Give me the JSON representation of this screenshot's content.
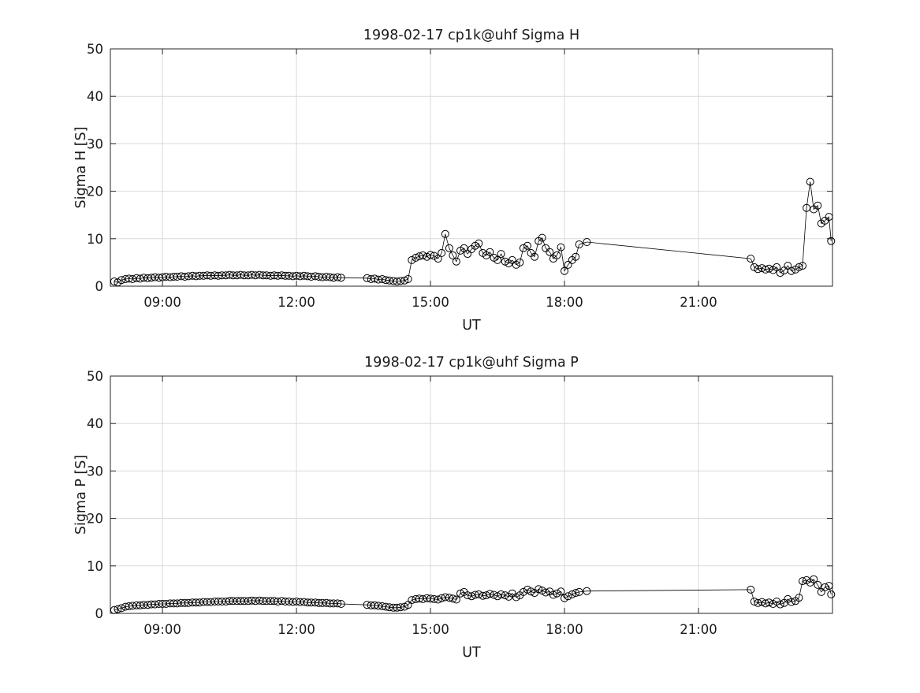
{
  "figure": {
    "background": "#ffffff",
    "axis_color": "#262626",
    "grid_color": "#d9d9d9",
    "data_color": "#000000"
  },
  "chart_data": [
    {
      "type": "line",
      "title": "1998-02-17  cp1k@uhf Sigma H",
      "xlabel": "UT",
      "ylabel": "Sigma H [S]",
      "xlim": [
        7.8333,
        24.0
      ],
      "ylim": [
        0,
        50
      ],
      "grid": true,
      "legend": "none",
      "marker": "open-circle",
      "xticks": {
        "values": [
          9,
          12,
          15,
          18,
          21
        ],
        "labels": [
          "09:00",
          "12:00",
          "15:00",
          "18:00",
          "21:00"
        ]
      },
      "yticks": {
        "values": [
          0,
          10,
          20,
          30,
          40,
          50
        ],
        "labels": [
          "0",
          "10",
          "20",
          "30",
          "40",
          "50"
        ]
      },
      "series": [
        {
          "name": "Sigma H",
          "x": [
            7.92,
            8.0,
            8.08,
            8.17,
            8.25,
            8.33,
            8.42,
            8.5,
            8.58,
            8.67,
            8.75,
            8.83,
            8.92,
            9.0,
            9.08,
            9.17,
            9.25,
            9.33,
            9.42,
            9.5,
            9.58,
            9.67,
            9.75,
            9.83,
            9.92,
            10.0,
            10.08,
            10.17,
            10.25,
            10.33,
            10.42,
            10.5,
            10.58,
            10.67,
            10.75,
            10.83,
            10.92,
            11.0,
            11.08,
            11.17,
            11.25,
            11.33,
            11.42,
            11.5,
            11.58,
            11.67,
            11.75,
            11.83,
            11.92,
            12.0,
            12.08,
            12.17,
            12.25,
            12.33,
            12.42,
            12.5,
            12.58,
            12.67,
            12.75,
            12.83,
            12.92,
            13.0,
            13.58,
            13.67,
            13.75,
            13.83,
            13.92,
            14.0,
            14.08,
            14.17,
            14.25,
            14.33,
            14.42,
            14.5,
            14.58,
            14.67,
            14.75,
            14.83,
            14.92,
            15.0,
            15.08,
            15.17,
            15.25,
            15.33,
            15.42,
            15.5,
            15.58,
            15.67,
            15.75,
            15.83,
            15.92,
            16.0,
            16.08,
            16.17,
            16.25,
            16.33,
            16.42,
            16.5,
            16.58,
            16.67,
            16.75,
            16.83,
            16.92,
            17.0,
            17.08,
            17.17,
            17.25,
            17.33,
            17.42,
            17.5,
            17.58,
            17.67,
            17.75,
            17.83,
            17.92,
            18.0,
            18.08,
            18.17,
            18.25,
            18.33,
            18.5,
            22.17,
            22.25,
            22.33,
            22.42,
            22.5,
            22.58,
            22.67,
            22.75,
            22.83,
            22.92,
            23.0,
            23.08,
            23.17,
            23.25,
            23.33,
            23.42,
            23.5,
            23.58,
            23.67,
            23.75,
            23.83,
            23.92,
            23.97
          ],
          "y": [
            1.0,
            0.8,
            1.3,
            1.5,
            1.6,
            1.5,
            1.7,
            1.6,
            1.8,
            1.7,
            1.8,
            1.9,
            1.8,
            1.9,
            2.0,
            1.9,
            2.0,
            2.0,
            2.1,
            2.0,
            2.1,
            2.2,
            2.1,
            2.2,
            2.2,
            2.3,
            2.2,
            2.3,
            2.2,
            2.3,
            2.3,
            2.4,
            2.3,
            2.3,
            2.4,
            2.3,
            2.3,
            2.4,
            2.3,
            2.4,
            2.3,
            2.3,
            2.2,
            2.3,
            2.2,
            2.3,
            2.2,
            2.2,
            2.1,
            2.2,
            2.1,
            2.2,
            2.1,
            2.0,
            2.1,
            2.0,
            1.9,
            2.0,
            1.9,
            1.8,
            1.9,
            1.8,
            1.7,
            1.5,
            1.6,
            1.4,
            1.5,
            1.3,
            1.2,
            1.1,
            1.0,
            1.1,
            1.2,
            1.5,
            5.5,
            6.0,
            6.3,
            6.5,
            6.2,
            6.6,
            6.4,
            5.8,
            7.0,
            11.0,
            8.0,
            6.5,
            5.2,
            7.5,
            8.0,
            6.8,
            7.8,
            8.5,
            9.0,
            7.0,
            6.5,
            7.2,
            6.0,
            5.5,
            6.8,
            5.2,
            4.8,
            5.5,
            4.5,
            5.0,
            8.0,
            8.5,
            7.0,
            6.2,
            9.5,
            10.2,
            8.0,
            7.2,
            5.8,
            6.5,
            8.2,
            3.2,
            4.5,
            5.5,
            6.2,
            8.8,
            9.3,
            5.8,
            4.0,
            3.6,
            3.8,
            3.5,
            3.7,
            3.4,
            4.0,
            2.8,
            3.3,
            4.3,
            3.2,
            3.5,
            4.0,
            4.3,
            16.5,
            22.0,
            16.2,
            17.0,
            13.2,
            13.8,
            14.6,
            9.5
          ]
        }
      ]
    },
    {
      "type": "line",
      "title": "1998-02-17  cp1k@uhf Sigma P",
      "xlabel": "UT",
      "ylabel": "Sigma P [S]",
      "xlim": [
        7.8333,
        24.0
      ],
      "ylim": [
        0,
        50
      ],
      "grid": true,
      "legend": "none",
      "marker": "open-circle",
      "xticks": {
        "values": [
          9,
          12,
          15,
          18,
          21
        ],
        "labels": [
          "09:00",
          "12:00",
          "15:00",
          "18:00",
          "21:00"
        ]
      },
      "yticks": {
        "values": [
          0,
          10,
          20,
          30,
          40,
          50
        ],
        "labels": [
          "0",
          "10",
          "20",
          "30",
          "40",
          "50"
        ]
      },
      "series": [
        {
          "name": "Sigma P",
          "x": [
            7.92,
            8.0,
            8.08,
            8.17,
            8.25,
            8.33,
            8.42,
            8.5,
            8.58,
            8.67,
            8.75,
            8.83,
            8.92,
            9.0,
            9.08,
            9.17,
            9.25,
            9.33,
            9.42,
            9.5,
            9.58,
            9.67,
            9.75,
            9.83,
            9.92,
            10.0,
            10.08,
            10.17,
            10.25,
            10.33,
            10.42,
            10.5,
            10.58,
            10.67,
            10.75,
            10.83,
            10.92,
            11.0,
            11.08,
            11.17,
            11.25,
            11.33,
            11.42,
            11.5,
            11.58,
            11.67,
            11.75,
            11.83,
            11.92,
            12.0,
            12.08,
            12.17,
            12.25,
            12.33,
            12.42,
            12.5,
            12.58,
            12.67,
            12.75,
            12.83,
            12.92,
            13.0,
            13.58,
            13.67,
            13.75,
            13.83,
            13.92,
            14.0,
            14.08,
            14.17,
            14.25,
            14.33,
            14.42,
            14.5,
            14.58,
            14.67,
            14.75,
            14.83,
            14.92,
            15.0,
            15.08,
            15.17,
            15.25,
            15.33,
            15.42,
            15.5,
            15.58,
            15.67,
            15.75,
            15.83,
            15.92,
            16.0,
            16.08,
            16.17,
            16.25,
            16.33,
            16.42,
            16.5,
            16.58,
            16.67,
            16.75,
            16.83,
            16.92,
            17.0,
            17.08,
            17.17,
            17.25,
            17.33,
            17.42,
            17.5,
            17.58,
            17.67,
            17.75,
            17.83,
            17.92,
            18.0,
            18.08,
            18.17,
            18.25,
            18.33,
            18.5,
            22.17,
            22.25,
            22.33,
            22.42,
            22.5,
            22.58,
            22.67,
            22.75,
            22.83,
            22.92,
            23.0,
            23.08,
            23.17,
            23.25,
            23.33,
            23.42,
            23.5,
            23.58,
            23.67,
            23.75,
            23.83,
            23.92,
            23.97
          ],
          "y": [
            0.7,
            0.9,
            1.1,
            1.4,
            1.5,
            1.6,
            1.7,
            1.7,
            1.8,
            1.8,
            1.9,
            1.9,
            2.0,
            2.0,
            2.0,
            2.1,
            2.1,
            2.1,
            2.2,
            2.2,
            2.2,
            2.3,
            2.3,
            2.3,
            2.4,
            2.4,
            2.4,
            2.5,
            2.5,
            2.5,
            2.5,
            2.6,
            2.6,
            2.6,
            2.6,
            2.6,
            2.6,
            2.7,
            2.6,
            2.7,
            2.6,
            2.6,
            2.6,
            2.6,
            2.5,
            2.6,
            2.5,
            2.5,
            2.4,
            2.5,
            2.4,
            2.4,
            2.3,
            2.3,
            2.3,
            2.2,
            2.2,
            2.2,
            2.1,
            2.1,
            2.1,
            2.0,
            1.8,
            1.7,
            1.7,
            1.6,
            1.5,
            1.4,
            1.3,
            1.2,
            1.2,
            1.3,
            1.4,
            1.8,
            2.8,
            3.0,
            3.1,
            3.0,
            3.2,
            3.1,
            3.0,
            2.9,
            3.2,
            3.4,
            3.3,
            3.1,
            2.9,
            4.2,
            4.5,
            3.8,
            3.6,
            3.9,
            4.0,
            3.7,
            3.8,
            4.1,
            3.9,
            3.6,
            4.0,
            3.8,
            3.5,
            4.2,
            3.4,
            3.8,
            4.5,
            5.0,
            4.6,
            4.3,
            5.1,
            4.8,
            4.4,
            4.6,
            3.9,
            4.2,
            4.6,
            3.2,
            3.6,
            4.0,
            4.3,
            4.5,
            4.7,
            5.0,
            2.5,
            2.2,
            2.4,
            2.1,
            2.3,
            2.0,
            2.5,
            1.9,
            2.2,
            3.0,
            2.4,
            2.6,
            3.3,
            6.8,
            7.0,
            6.5,
            7.2,
            6.0,
            4.5,
            5.5,
            5.8,
            4.0
          ]
        }
      ]
    }
  ]
}
